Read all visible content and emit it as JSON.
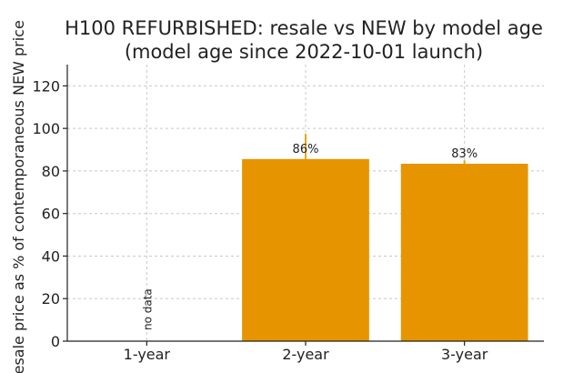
{
  "chart_data": {
    "type": "bar",
    "title": "H100 REFURBISHED: resale vs NEW by model age",
    "subtitle": "(model age since 2022-10-01 launch)",
    "ylabel": "Resale price as % of contemporaneous NEW price",
    "xlabel": "",
    "categories": [
      "1-year",
      "2-year",
      "3-year"
    ],
    "values": [
      null,
      85.6,
      83.4
    ],
    "value_labels": [
      "",
      "86%",
      "83%"
    ],
    "error_upper": [
      null,
      97.5,
      85.0
    ],
    "missing_label": "no data",
    "ylim": [
      0,
      130
    ],
    "yticks": [
      0,
      20,
      40,
      60,
      80,
      100,
      120
    ],
    "grid": true,
    "bar_color": "#e69500",
    "error_color": "#e6a800"
  }
}
